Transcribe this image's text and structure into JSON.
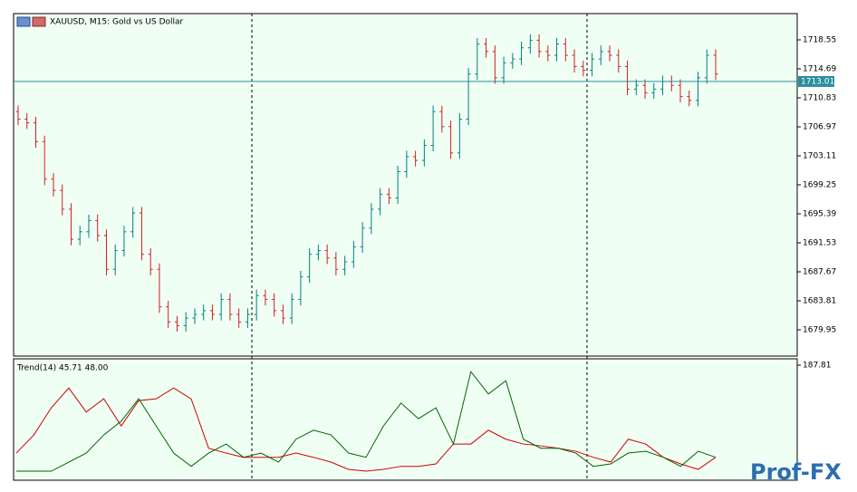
{
  "chart_data": [
    {
      "type": "ohlc",
      "title": "XAUUSD, M15:  Gold vs US Dollar",
      "open": [
        1709,
        1708,
        1707.5,
        1705,
        1700,
        1698.5,
        1696,
        1692,
        1693,
        1694.5,
        1692.5,
        1688,
        1690.5,
        1693,
        1695.5,
        1690,
        1688,
        1683,
        1681,
        1680.5,
        1681.5,
        1682,
        1682.5,
        1682,
        1684,
        1682,
        1681,
        1682,
        1684.5,
        1684,
        1682.5,
        1681.5,
        1684,
        1687,
        1690,
        1690.5,
        1689.5,
        1688,
        1689,
        1691,
        1693.5,
        1696,
        1698,
        1697.5,
        1701,
        1703,
        1702.5,
        1704.5,
        1709,
        1707,
        1703.5,
        1708,
        1714,
        1718,
        1717,
        1713.5,
        1715.5,
        1716,
        1717.5,
        1718.5,
        1717,
        1716.5,
        1718,
        1716.5,
        1715,
        1714.5,
        1716,
        1717,
        1716.5,
        1715,
        1712,
        1712.5,
        1711.5,
        1712,
        1713,
        1712.5,
        1711,
        1710.5,
        1713.5,
        1716.5
      ],
      "high": [
        1709.8,
        1708.8,
        1708.3,
        1705.8,
        1700.8,
        1699.3,
        1696.8,
        1693.8,
        1695.3,
        1695.3,
        1693.3,
        1691.3,
        1693.8,
        1696.3,
        1696.3,
        1690.8,
        1688.8,
        1683.8,
        1681.8,
        1682.3,
        1682.8,
        1683.3,
        1683.3,
        1684.8,
        1684.8,
        1682.8,
        1682.8,
        1685.3,
        1685.3,
        1684.8,
        1683.3,
        1684.8,
        1687.8,
        1690.8,
        1691.3,
        1691.3,
        1690.3,
        1689.8,
        1691.8,
        1694.3,
        1696.8,
        1698.8,
        1698.8,
        1701.8,
        1703.8,
        1703.8,
        1705.3,
        1709.8,
        1709.8,
        1707.8,
        1708.8,
        1714.8,
        1718.8,
        1718.8,
        1717.8,
        1716.3,
        1716.8,
        1718.3,
        1719.3,
        1719.3,
        1717.8,
        1718.8,
        1718.8,
        1717.3,
        1715.8,
        1716.8,
        1717.8,
        1717.8,
        1717.3,
        1715.8,
        1713.3,
        1713.3,
        1712.8,
        1713.8,
        1713.8,
        1713.3,
        1711.8,
        1714.3,
        1717.3,
        1717.3
      ],
      "low": [
        1707.2,
        1706.7,
        1704.2,
        1699.2,
        1697.7,
        1695.2,
        1691.2,
        1691.2,
        1692.2,
        1691.7,
        1687.2,
        1687.2,
        1689.7,
        1692.2,
        1689.2,
        1687.2,
        1682.2,
        1680.2,
        1679.7,
        1679.7,
        1680.7,
        1681.2,
        1681.2,
        1681.2,
        1681.2,
        1680.2,
        1680.2,
        1681.2,
        1683.2,
        1681.7,
        1680.7,
        1680.7,
        1683.2,
        1686.2,
        1689.2,
        1688.7,
        1687.2,
        1687.2,
        1688.2,
        1690.2,
        1692.7,
        1695.2,
        1696.7,
        1696.7,
        1700.2,
        1701.7,
        1701.7,
        1703.7,
        1706.2,
        1702.7,
        1702.7,
        1707.2,
        1713.2,
        1716.2,
        1712.7,
        1712.7,
        1714.7,
        1715.2,
        1716.7,
        1716.2,
        1715.7,
        1715.7,
        1715.7,
        1714.2,
        1713.7,
        1713.7,
        1715.2,
        1715.7,
        1714.2,
        1711.2,
        1711.2,
        1710.7,
        1710.7,
        1711.2,
        1711.7,
        1710.2,
        1709.7,
        1709.7,
        1712.7,
        1713.2
      ],
      "close": [
        1708,
        1707.5,
        1705,
        1700,
        1698.5,
        1696,
        1692,
        1693,
        1694.5,
        1692.5,
        1688,
        1690.5,
        1693,
        1695.5,
        1690,
        1688,
        1683,
        1681,
        1680.5,
        1681.5,
        1682,
        1682.5,
        1682,
        1684,
        1682,
        1681,
        1682,
        1684.5,
        1684,
        1682.5,
        1681.5,
        1684,
        1687,
        1690,
        1690.5,
        1689.5,
        1688,
        1689,
        1691,
        1693.5,
        1696,
        1698,
        1697.5,
        1701,
        1703,
        1702.5,
        1704.5,
        1709,
        1707,
        1703.5,
        1708,
        1714,
        1718,
        1717,
        1713.5,
        1715.5,
        1716,
        1717.5,
        1718.5,
        1717,
        1716.5,
        1718,
        1716.5,
        1715,
        1714.5,
        1716,
        1717,
        1716.5,
        1715,
        1712,
        1712.5,
        1711.5,
        1712,
        1713,
        1712.5,
        1711,
        1710.5,
        1713.5,
        1716.5,
        1714
      ],
      "up_color": "#008080",
      "down_color": "#d02020",
      "current_price": 1713.01,
      "current_price_color": "#2a8f9f",
      "ylim": [
        1676.45,
        1722.05
      ],
      "yticks": [
        1718.55,
        1714.69,
        1710.83,
        1706.97,
        1703.11,
        1699.25,
        1695.39,
        1691.53,
        1687.67,
        1683.81,
        1679.95
      ]
    },
    {
      "type": "line",
      "title": "Trend(14) 45.71 48.00",
      "series": [
        {
          "color": "#d00000",
          "values": [
            42,
            72,
            117,
            150,
            110,
            132,
            87,
            129,
            132,
            150,
            132,
            50,
            42,
            35,
            35,
            35,
            42,
            35,
            27,
            15,
            12,
            15,
            20,
            20,
            24,
            57,
            57,
            80,
            65,
            57,
            54,
            50,
            45,
            35,
            27,
            65,
            57,
            35,
            24,
            15,
            35
          ]
        },
        {
          "color": "#006400",
          "values": [
            12,
            12,
            12,
            27,
            42,
            72,
            95,
            132,
            87,
            42,
            20,
            42,
            57,
            35,
            42,
            27,
            65,
            80,
            72,
            42,
            35,
            87,
            125,
            99,
            117,
            57,
            177,
            140,
            162,
            65,
            50,
            50,
            42,
            20,
            24,
            42,
            45,
            35,
            20,
            45,
            35
          ]
        }
      ],
      "ylim": [
        0,
        187.81
      ],
      "yticks": [
        187.81
      ]
    }
  ],
  "watermark": "Prof-FX"
}
